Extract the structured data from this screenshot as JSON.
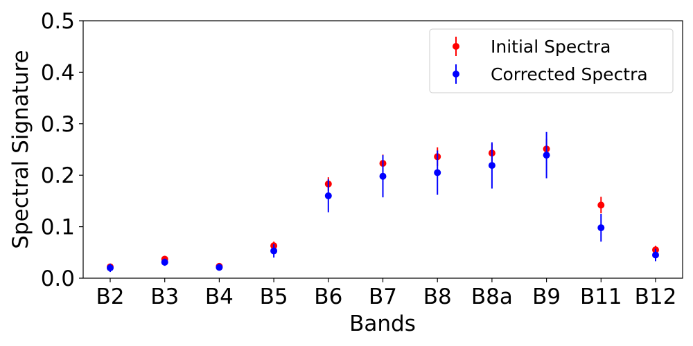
{
  "chart_data": {
    "type": "scatter",
    "xlabel": "Bands",
    "ylabel": "Spectral Signature",
    "ylim": [
      0,
      0.5
    ],
    "yticks": [
      "0.0",
      "0.1",
      "0.2",
      "0.3",
      "0.4",
      "0.5"
    ],
    "categories": [
      "B2",
      "B3",
      "B4",
      "B5",
      "B6",
      "B7",
      "B8",
      "B8a",
      "B9",
      "B11",
      "B12"
    ],
    "grid": false,
    "legend_position": "top-right",
    "series": [
      {
        "name": "Initial Spectra",
        "color": "#ff0000",
        "values": [
          0.022,
          0.037,
          0.023,
          0.063,
          0.183,
          0.223,
          0.236,
          0.243,
          0.251,
          0.142,
          0.055
        ],
        "errors": [
          0.003,
          0.004,
          0.004,
          0.008,
          0.013,
          0.017,
          0.018,
          0.018,
          0.02,
          0.016,
          0.008
        ]
      },
      {
        "name": "Corrected Spectra",
        "color": "#0000ff",
        "values": [
          0.02,
          0.031,
          0.021,
          0.053,
          0.16,
          0.198,
          0.205,
          0.219,
          0.239,
          0.098,
          0.045
        ],
        "errors": [
          0.008,
          0.007,
          0.006,
          0.013,
          0.032,
          0.041,
          0.043,
          0.045,
          0.045,
          0.027,
          0.012
        ]
      }
    ]
  }
}
